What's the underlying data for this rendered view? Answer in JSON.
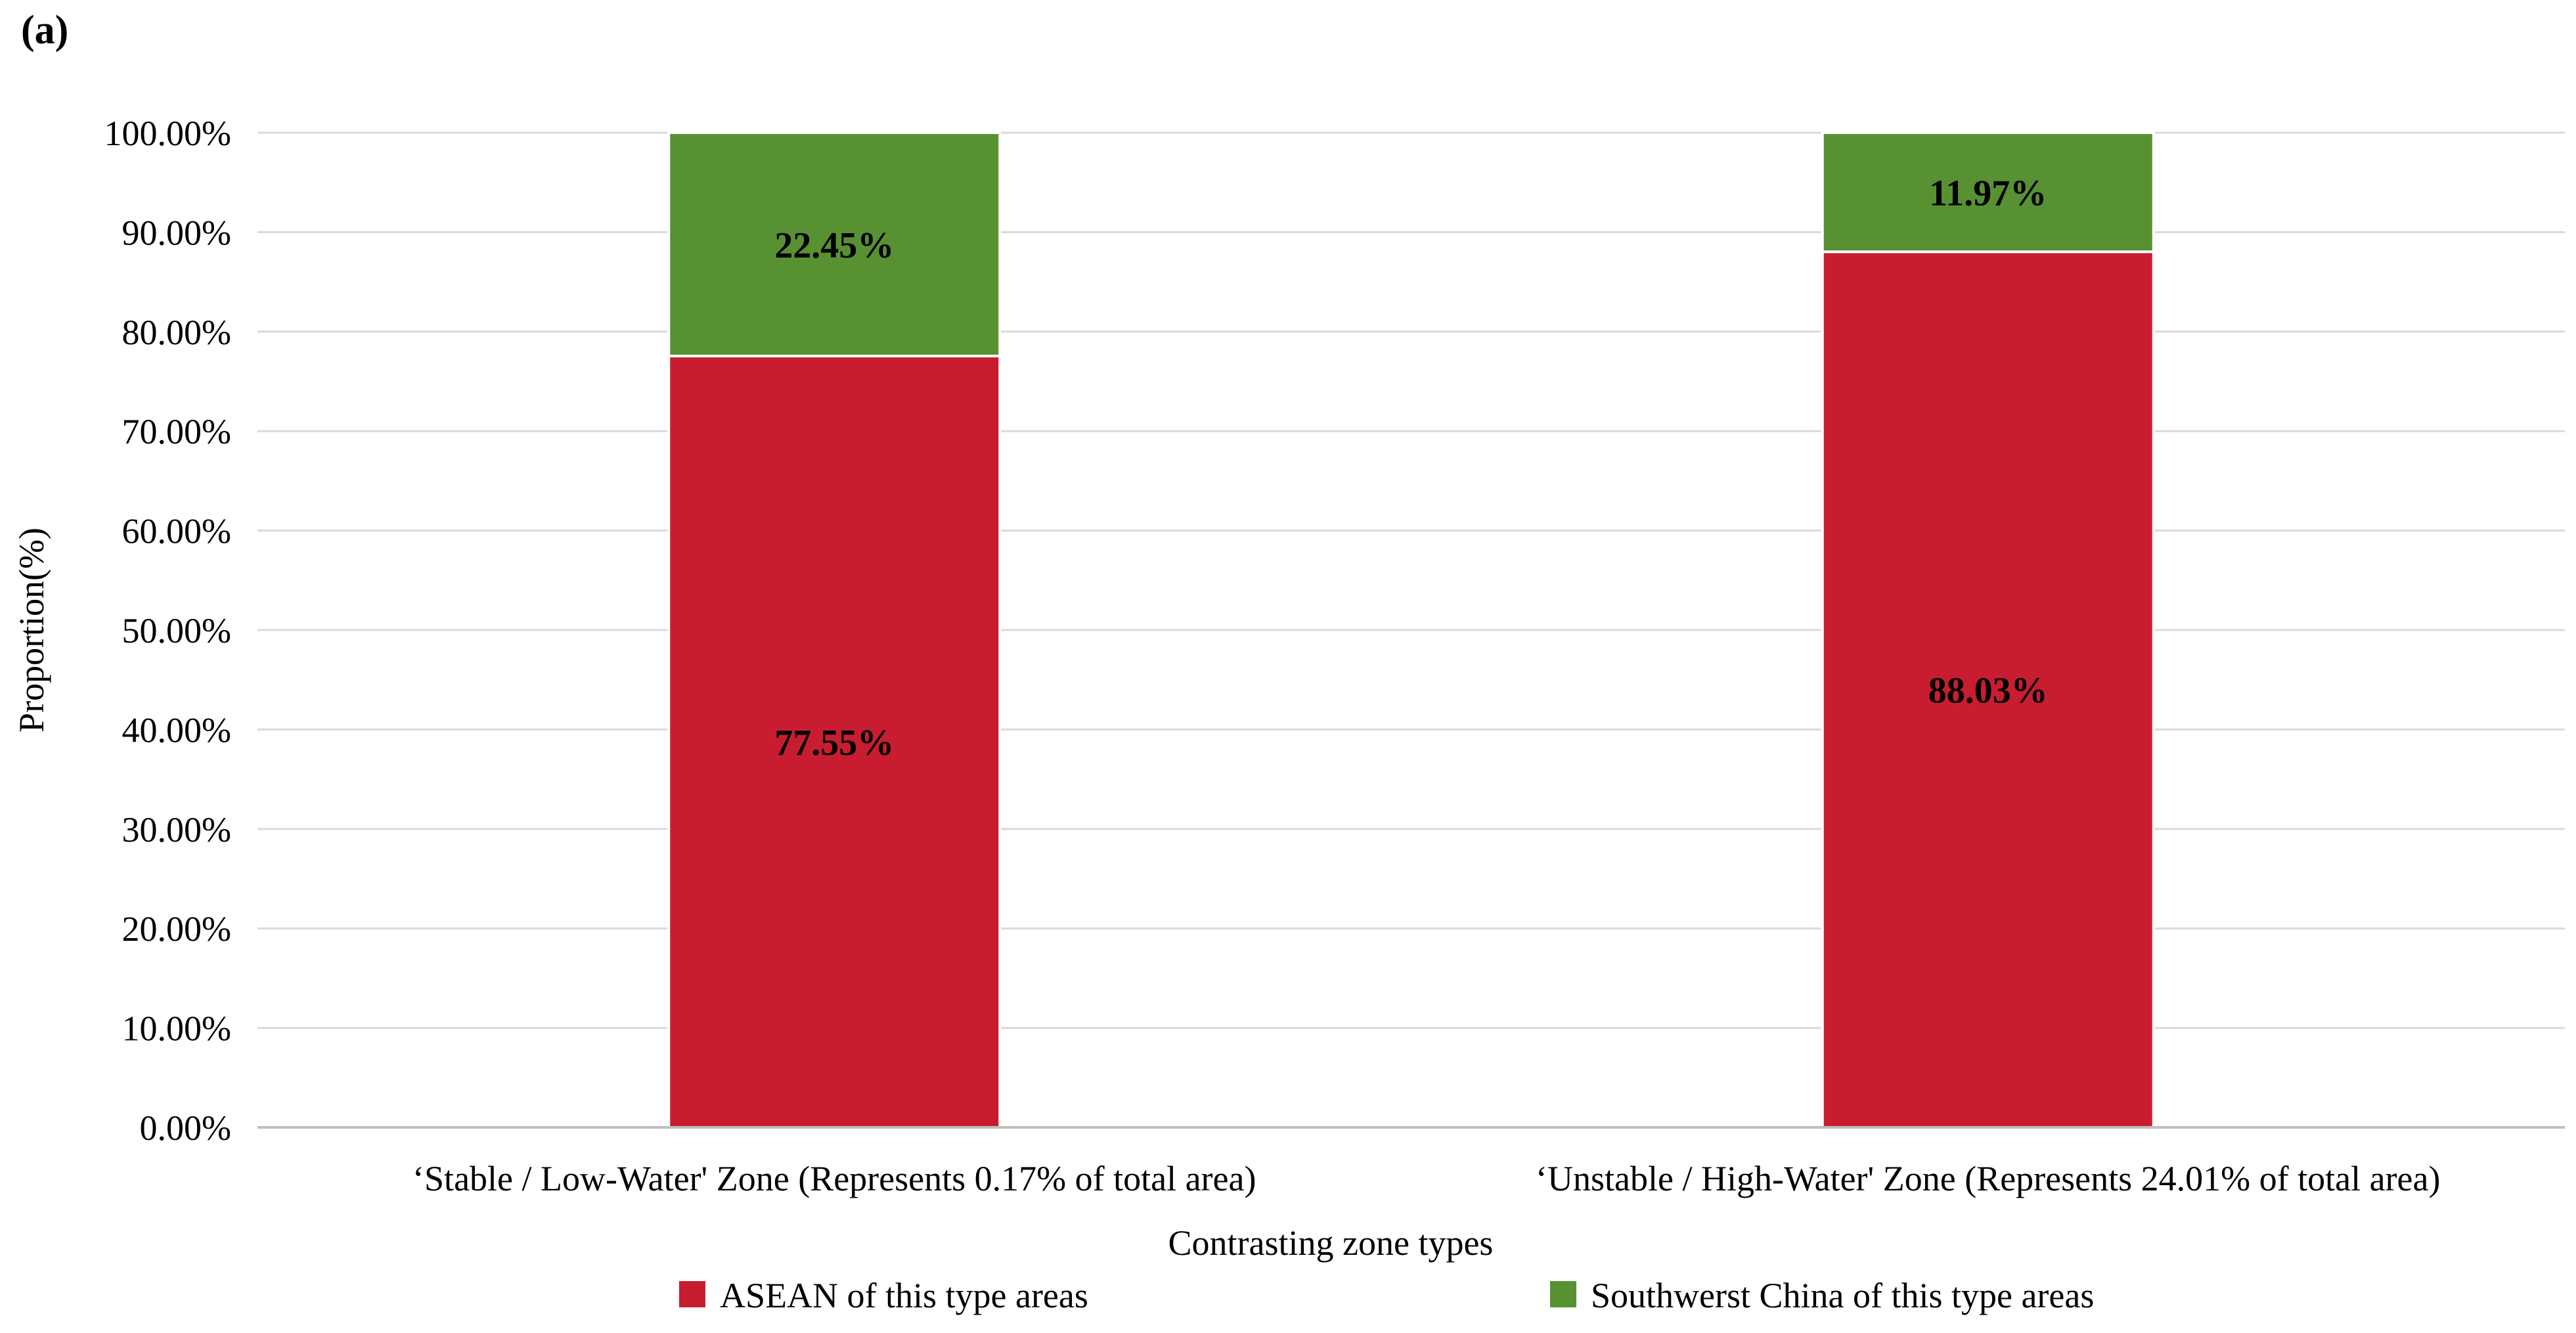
{
  "panel_label": "(a)",
  "chart_data": {
    "type": "bar",
    "stacked": true,
    "categories": [
      "‘Stable / Low-Water' Zone (Represents 0.17% of total area)",
      "‘Unstable / High-Water' Zone (Represents 24.01% of total area)"
    ],
    "series": [
      {
        "name": "ASEAN of this type areas",
        "values": [
          77.55,
          88.03
        ],
        "color": "#c81d30"
      },
      {
        "name": "Southwerst China of this type areas",
        "values": [
          22.45,
          11.97
        ],
        "color": "#589132"
      }
    ],
    "data_labels": [
      [
        "77.55%",
        "88.03%"
      ],
      [
        "22.45%",
        "11.97%"
      ]
    ],
    "xlabel": "Contrasting zone types",
    "ylabel": "Proportion(%)",
    "ylim": [
      0,
      100
    ],
    "yticks": [
      0,
      10,
      20,
      30,
      40,
      50,
      60,
      70,
      80,
      90,
      100
    ],
    "ytick_labels": [
      "0.00%",
      "10.00%",
      "20.00%",
      "30.00%",
      "40.00%",
      "50.00%",
      "60.00%",
      "70.00%",
      "80.00%",
      "90.00%",
      "100.00%"
    ],
    "grid": true,
    "legend_position": "bottom",
    "gridline_color": "#d9d9d9",
    "axis_color": "#bfbfbf"
  }
}
